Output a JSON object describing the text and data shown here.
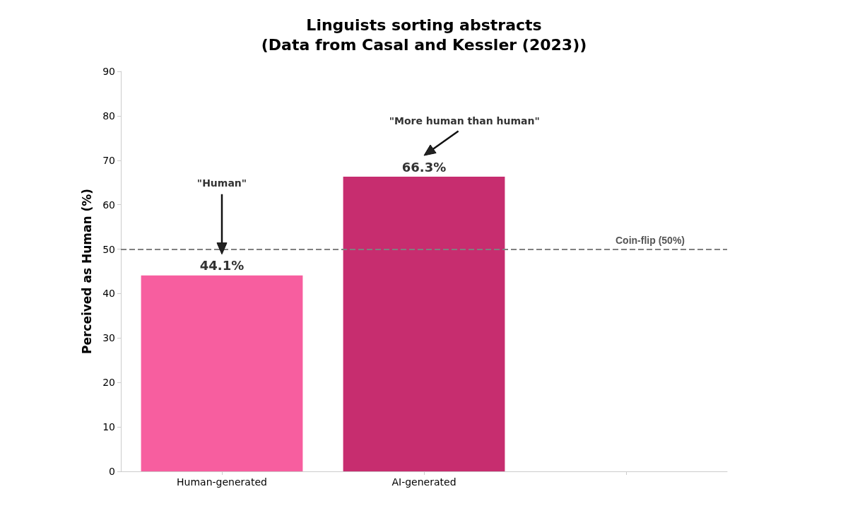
{
  "chart_data": {
    "type": "bar",
    "title": "Linguists sorting abstracts\n(Data from Casal and Kessler (2023))",
    "ylabel": "Perceived as Human (%)",
    "categories": [
      "Human-generated",
      "AI-generated",
      null
    ],
    "values": [
      44.1,
      66.3,
      null
    ],
    "colors": [
      "#f75e9f",
      "#c72d6f",
      null
    ],
    "value_labels": [
      "44.1%",
      "66.3%",
      null
    ],
    "ylim": [
      0,
      90
    ],
    "yticks": [
      0,
      10,
      20,
      30,
      40,
      50,
      60,
      70,
      80,
      90
    ],
    "grid": false,
    "ref_lines": [
      {
        "axis": "y",
        "value": 50,
        "label": "Coin-flip (50%)",
        "color": "#808080",
        "line_style": "dashed"
      }
    ],
    "annotations": [
      "\"Human\"",
      "\"More human than human\""
    ]
  }
}
